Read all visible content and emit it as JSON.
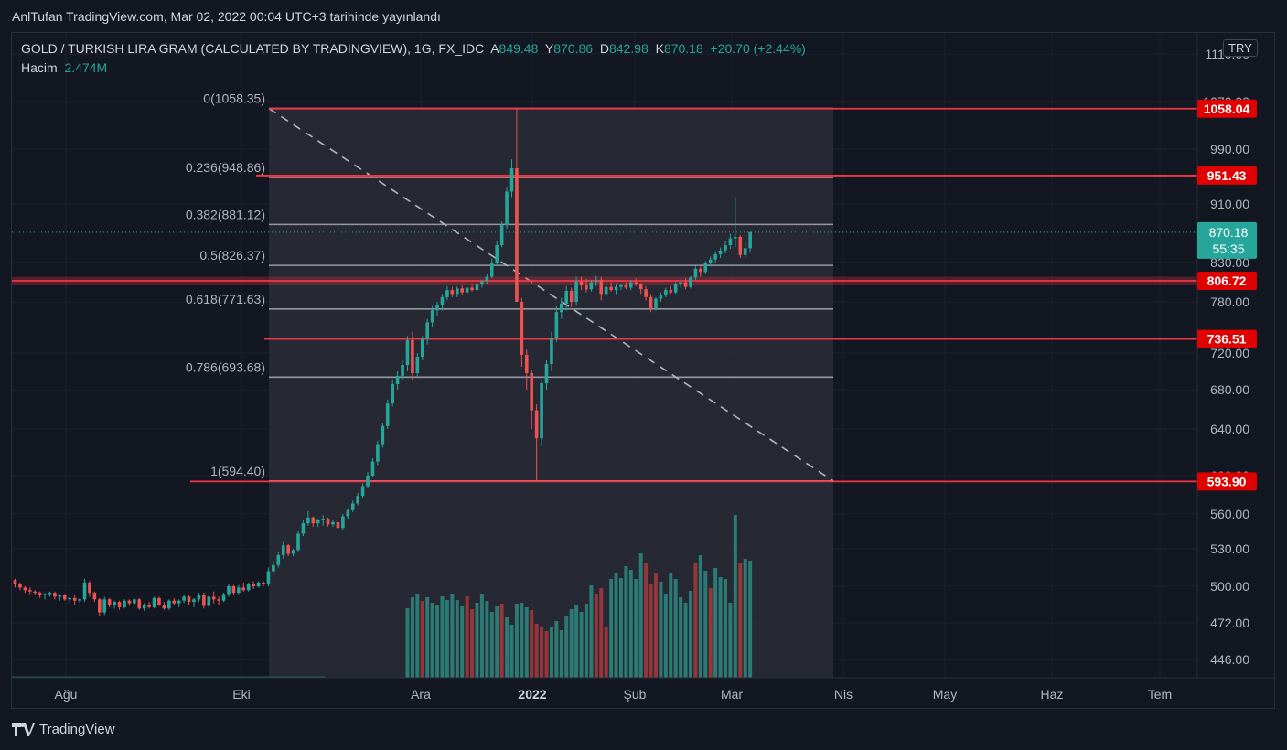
{
  "header": {
    "published": "AnlTufan TradingView.com, Mar 02, 2022 00:04 UTC+3 tarihinde yayınlandı"
  },
  "legend": {
    "symbol": "GOLD / TURKISH LIRA GRAM (CALCULATED BY TRADINGVIEW), 1G, FX_IDC",
    "open_label": "A",
    "open": "849.48",
    "high_label": "Y",
    "high": "870.86",
    "low_label": "D",
    "low": "842.98",
    "close_label": "K",
    "close": "870.18",
    "change": "+20.70 (+2.44%)",
    "volume_label": "Hacim",
    "volume": "2.474M"
  },
  "currency_badge": "TRY",
  "brand": {
    "name": "TradingView",
    "icon": "tradingview-logo-icon"
  },
  "colors": {
    "up": "#26a69a",
    "down": "#ef5350",
    "background": "#131722",
    "grid": "#1e222d",
    "hline": "#f23645",
    "fib_zone": "#2a2d36",
    "text": "#b2b5be"
  },
  "chart_data": {
    "type": "candlestick",
    "y_axis": {
      "ticks": [
        446,
        472,
        500,
        530,
        560,
        600,
        640,
        680,
        720,
        780,
        830,
        870,
        910,
        990,
        1070,
        1110
      ],
      "tick_labels": [
        "446.00",
        "472.00",
        "500.00",
        "530.00",
        "560.00",
        "600.00",
        "640.00",
        "680.00",
        "720.00",
        "780.00",
        "830.00",
        "870.00",
        "910.00",
        "990.00",
        "1070.00",
        "1110.00"
      ],
      "ylim": [
        430,
        1130
      ]
    },
    "x_axis": {
      "labels": [
        "Ağu",
        "Eki",
        "Ara",
        "2022",
        "Şub",
        "Mar",
        "Nis",
        "May",
        "Haz",
        "Tem"
      ],
      "bold": [
        false,
        false,
        false,
        true,
        false,
        false,
        false,
        false,
        false,
        false
      ]
    },
    "horizontal_lines": [
      {
        "price": 1058.04,
        "label": "1058.04"
      },
      {
        "price": 951.43,
        "label": "951.43"
      },
      {
        "price": 806.72,
        "label": "806.72"
      },
      {
        "price": 736.51,
        "label": "736.51"
      },
      {
        "price": 593.9,
        "label": "593.90"
      }
    ],
    "current_price": {
      "value": 870.18,
      "label": "870.18",
      "countdown": "55:35"
    },
    "fibonacci": {
      "levels": [
        {
          "ratio": "0",
          "price": 1058.35,
          "label": "0(1058.35)"
        },
        {
          "ratio": "0.236",
          "price": 948.86,
          "label": "0.236(948.86)"
        },
        {
          "ratio": "0.382",
          "price": 881.12,
          "label": "0.382(881.12)"
        },
        {
          "ratio": "0.5",
          "price": 826.37,
          "label": "0.5(826.37)"
        },
        {
          "ratio": "0.618",
          "price": 771.63,
          "label": "0.618(771.63)"
        },
        {
          "ratio": "0.786",
          "price": 693.68,
          "label": "0.786(693.68)"
        },
        {
          "ratio": "1",
          "price": 594.4,
          "label": "1(594.40)"
        }
      ]
    },
    "candles": [
      [
        505,
        506,
        499,
        502
      ],
      [
        502,
        503,
        497,
        499
      ],
      [
        499,
        500,
        495,
        497
      ],
      [
        497,
        499,
        494,
        496
      ],
      [
        496,
        497,
        493,
        495
      ],
      [
        495,
        496,
        491,
        493
      ],
      [
        493,
        495,
        490,
        494
      ],
      [
        494,
        496,
        492,
        495
      ],
      [
        495,
        496,
        490,
        492
      ],
      [
        492,
        494,
        489,
        493
      ],
      [
        493,
        494,
        489,
        490
      ],
      [
        490,
        492,
        487,
        491
      ],
      [
        491,
        493,
        486,
        489
      ],
      [
        489,
        491,
        487,
        490
      ],
      [
        490,
        506,
        488,
        503
      ],
      [
        503,
        504,
        492,
        495
      ],
      [
        495,
        496,
        488,
        490
      ],
      [
        490,
        491,
        477,
        480
      ],
      [
        480,
        492,
        478,
        490
      ],
      [
        490,
        491,
        484,
        486
      ],
      [
        486,
        489,
        483,
        488
      ],
      [
        488,
        489,
        482,
        484
      ],
      [
        484,
        490,
        483,
        489
      ],
      [
        489,
        490,
        485,
        487
      ],
      [
        487,
        491,
        486,
        490
      ],
      [
        490,
        491,
        482,
        483
      ],
      [
        483,
        487,
        481,
        486
      ],
      [
        486,
        488,
        483,
        484
      ],
      [
        484,
        492,
        483,
        491
      ],
      [
        491,
        492,
        485,
        486
      ],
      [
        486,
        488,
        482,
        483
      ],
      [
        483,
        490,
        482,
        489
      ],
      [
        489,
        491,
        486,
        487
      ],
      [
        487,
        490,
        484,
        489
      ],
      [
        489,
        493,
        487,
        492
      ],
      [
        492,
        493,
        486,
        488
      ],
      [
        488,
        491,
        484,
        490
      ],
      [
        490,
        495,
        488,
        493
      ],
      [
        493,
        495,
        483,
        485
      ],
      [
        485,
        494,
        484,
        492
      ],
      [
        492,
        496,
        487,
        490
      ],
      [
        490,
        492,
        486,
        489
      ],
      [
        489,
        495,
        488,
        494
      ],
      [
        494,
        502,
        492,
        500
      ],
      [
        500,
        501,
        493,
        495
      ],
      [
        495,
        501,
        494,
        499
      ],
      [
        499,
        503,
        496,
        497
      ],
      [
        497,
        503,
        496,
        502
      ],
      [
        502,
        504,
        498,
        500
      ],
      [
        500,
        504,
        499,
        503
      ],
      [
        503,
        504,
        500,
        502
      ],
      [
        502,
        515,
        500,
        512
      ],
      [
        512,
        520,
        510,
        517
      ],
      [
        517,
        527,
        515,
        525
      ],
      [
        525,
        536,
        522,
        533
      ],
      [
        533,
        534,
        524,
        526
      ],
      [
        526,
        530,
        524,
        529
      ],
      [
        529,
        545,
        527,
        543
      ],
      [
        543,
        555,
        541,
        552
      ],
      [
        552,
        563,
        550,
        557
      ],
      [
        557,
        558,
        549,
        552
      ],
      [
        552,
        556,
        549,
        555
      ],
      [
        555,
        559,
        550,
        556
      ],
      [
        556,
        557,
        549,
        551
      ],
      [
        551,
        555,
        549,
        553
      ],
      [
        553,
        556,
        547,
        548
      ],
      [
        548,
        560,
        546,
        558
      ],
      [
        558,
        566,
        556,
        564
      ],
      [
        564,
        574,
        562,
        571
      ],
      [
        571,
        582,
        569,
        579
      ],
      [
        579,
        592,
        577,
        589
      ],
      [
        589,
        603,
        587,
        600
      ],
      [
        600,
        615,
        598,
        612
      ],
      [
        612,
        630,
        609,
        627
      ],
      [
        627,
        646,
        624,
        643
      ],
      [
        643,
        670,
        640,
        666
      ],
      [
        666,
        690,
        663,
        686
      ],
      [
        686,
        700,
        680,
        695
      ],
      [
        695,
        712,
        690,
        707
      ],
      [
        707,
        740,
        700,
        735
      ],
      [
        735,
        745,
        690,
        698
      ],
      [
        698,
        720,
        694,
        716
      ],
      [
        716,
        740,
        712,
        736
      ],
      [
        736,
        760,
        730,
        756
      ],
      [
        756,
        775,
        750,
        770
      ],
      [
        770,
        780,
        764,
        776
      ],
      [
        776,
        790,
        770,
        786
      ],
      [
        786,
        800,
        782,
        795
      ],
      [
        795,
        799,
        786,
        790
      ],
      [
        790,
        800,
        786,
        797
      ],
      [
        797,
        801,
        788,
        792
      ],
      [
        792,
        800,
        790,
        798
      ],
      [
        798,
        803,
        793,
        795
      ],
      [
        795,
        806,
        794,
        803
      ],
      [
        803,
        808,
        798,
        806
      ],
      [
        806,
        815,
        802,
        812
      ],
      [
        812,
        835,
        810,
        830
      ],
      [
        830,
        858,
        826,
        853
      ],
      [
        853,
        885,
        850,
        880
      ],
      [
        880,
        935,
        875,
        928
      ],
      [
        928,
        975,
        920,
        962
      ],
      [
        962,
        1058,
        780,
        780
      ],
      [
        780,
        785,
        705,
        718
      ],
      [
        718,
        724,
        680,
        698
      ],
      [
        698,
        702,
        640,
        659
      ],
      [
        659,
        665,
        594,
        632
      ],
      [
        632,
        690,
        625,
        687
      ],
      [
        687,
        712,
        680,
        708
      ],
      [
        708,
        745,
        700,
        738
      ],
      [
        738,
        775,
        733,
        768
      ],
      [
        768,
        785,
        760,
        778
      ],
      [
        778,
        800,
        770,
        794
      ],
      [
        794,
        798,
        774,
        780
      ],
      [
        780,
        812,
        775,
        806
      ],
      [
        806,
        812,
        795,
        801
      ],
      [
        801,
        809,
        792,
        796
      ],
      [
        796,
        808,
        793,
        805
      ],
      [
        805,
        813,
        800,
        808
      ],
      [
        808,
        812,
        782,
        790
      ],
      [
        790,
        803,
        787,
        799
      ],
      [
        799,
        805,
        793,
        795
      ],
      [
        795,
        802,
        790,
        799
      ],
      [
        799,
        803,
        795,
        801
      ],
      [
        801,
        805,
        796,
        798
      ],
      [
        798,
        808,
        795,
        805
      ],
      [
        805,
        810,
        800,
        802
      ],
      [
        802,
        804,
        790,
        796
      ],
      [
        796,
        800,
        782,
        786
      ],
      [
        786,
        790,
        768,
        772
      ],
      [
        772,
        786,
        770,
        784
      ],
      [
        784,
        792,
        780,
        788
      ],
      [
        788,
        798,
        786,
        795
      ],
      [
        795,
        800,
        790,
        792
      ],
      [
        792,
        805,
        790,
        802
      ],
      [
        802,
        809,
        798,
        805
      ],
      [
        805,
        810,
        796,
        799
      ],
      [
        799,
        813,
        797,
        811
      ],
      [
        811,
        825,
        808,
        822
      ],
      [
        822,
        825,
        812,
        818
      ],
      [
        818,
        832,
        815,
        829
      ],
      [
        829,
        838,
        825,
        834
      ],
      [
        834,
        845,
        830,
        841
      ],
      [
        841,
        850,
        836,
        846
      ],
      [
        846,
        858,
        842,
        853
      ],
      [
        853,
        868,
        848,
        862
      ],
      [
        862,
        920,
        850,
        864
      ],
      [
        864,
        866,
        836,
        840
      ],
      [
        840,
        858,
        836,
        849
      ],
      [
        849,
        871,
        843,
        870
      ]
    ],
    "volume": [
      {
        "v": 76,
        "up": true
      },
      {
        "v": 88,
        "up": true
      },
      {
        "v": 92,
        "up": true
      },
      {
        "v": 84,
        "up": false
      },
      {
        "v": 88,
        "up": true
      },
      {
        "v": 82,
        "up": true
      },
      {
        "v": 79,
        "up": true
      },
      {
        "v": 89,
        "up": true
      },
      {
        "v": 85,
        "up": true
      },
      {
        "v": 92,
        "up": true
      },
      {
        "v": 85,
        "up": true
      },
      {
        "v": 78,
        "up": true
      },
      {
        "v": 89,
        "up": false
      },
      {
        "v": 75,
        "up": false
      },
      {
        "v": 82,
        "up": true
      },
      {
        "v": 92,
        "up": true
      },
      {
        "v": 84,
        "up": true
      },
      {
        "v": 72,
        "up": true
      },
      {
        "v": 78,
        "up": true
      },
      {
        "v": 81,
        "up": false
      },
      {
        "v": 66,
        "up": true
      },
      {
        "v": 58,
        "up": true
      },
      {
        "v": 81,
        "up": true
      },
      {
        "v": 82,
        "up": true
      },
      {
        "v": 77,
        "up": true
      },
      {
        "v": 74,
        "up": false
      },
      {
        "v": 59,
        "up": false
      },
      {
        "v": 56,
        "up": false
      },
      {
        "v": 51,
        "up": false
      },
      {
        "v": 56,
        "up": true
      },
      {
        "v": 62,
        "up": true
      },
      {
        "v": 52,
        "up": true
      },
      {
        "v": 68,
        "up": true
      },
      {
        "v": 75,
        "up": true
      },
      {
        "v": 79,
        "up": true
      },
      {
        "v": 72,
        "up": true
      },
      {
        "v": 81,
        "up": true
      },
      {
        "v": 101,
        "up": true
      },
      {
        "v": 92,
        "up": false
      },
      {
        "v": 98,
        "up": false
      },
      {
        "v": 55,
        "up": false
      },
      {
        "v": 108,
        "up": true
      },
      {
        "v": 115,
        "up": true
      },
      {
        "v": 109,
        "up": true
      },
      {
        "v": 122,
        "up": true
      },
      {
        "v": 118,
        "up": true
      },
      {
        "v": 108,
        "up": true
      },
      {
        "v": 136,
        "up": true
      },
      {
        "v": 125,
        "up": false
      },
      {
        "v": 102,
        "up": false
      },
      {
        "v": 115,
        "up": false
      },
      {
        "v": 105,
        "up": true
      },
      {
        "v": 92,
        "up": true
      },
      {
        "v": 114,
        "up": true
      },
      {
        "v": 108,
        "up": true
      },
      {
        "v": 88,
        "up": true
      },
      {
        "v": 82,
        "up": true
      },
      {
        "v": 95,
        "up": true
      },
      {
        "v": 126,
        "up": false
      },
      {
        "v": 134,
        "up": true
      },
      {
        "v": 117,
        "up": true
      },
      {
        "v": 98,
        "up": false
      },
      {
        "v": 120,
        "up": true
      },
      {
        "v": 110,
        "up": true
      },
      {
        "v": 108,
        "up": true
      },
      {
        "v": 82,
        "up": true
      },
      {
        "v": 178,
        "up": true
      },
      {
        "v": 125,
        "up": false
      },
      {
        "v": 130,
        "up": true
      },
      {
        "v": 128,
        "up": true
      }
    ],
    "volume_start_index": 79
  }
}
